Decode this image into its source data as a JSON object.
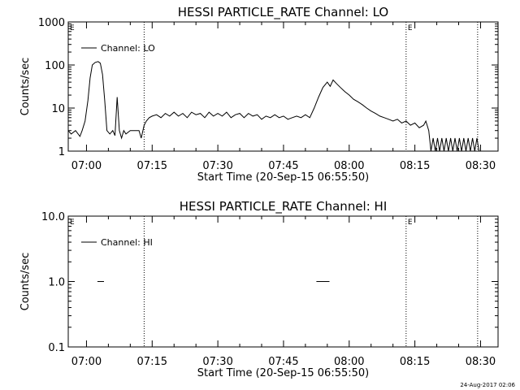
{
  "footer": {
    "timestamp": "24-Aug-2017 02:06"
  },
  "chart_data": [
    {
      "type": "line",
      "title": "HESSI PARTICLE_RATE Channel: LO",
      "xlabel": "Start Time (20-Sep-15 06:55:50)",
      "ylabel": "Counts/sec",
      "yscale": "log",
      "xlim": [
        "06:55:50",
        "08:34:00"
      ],
      "ylim": [
        1,
        1000
      ],
      "x_ticks": [
        "07:00",
        "07:15",
        "07:30",
        "07:45",
        "08:00",
        "08:15",
        "08:30"
      ],
      "y_ticks": [
        "1",
        "10",
        "100",
        "1000"
      ],
      "legend": {
        "position": "top-left",
        "entries": [
          "Channel: LO"
        ]
      },
      "vertical_markers": [
        "07:13:10",
        "08:13:00",
        "08:29:20"
      ],
      "marker_labels": [
        {
          "at": "08:13:00",
          "text": "E"
        },
        {
          "at": "06:55:50",
          "text": "E"
        }
      ],
      "series": [
        {
          "name": "Channel: LO",
          "points": [
            [
              "06:55:50",
              3
            ],
            [
              "06:56:30",
              2.5
            ],
            [
              "06:57:30",
              3
            ],
            [
              "06:58:30",
              2.2
            ],
            [
              "06:59:00",
              3
            ],
            [
              "06:59:40",
              5
            ],
            [
              "07:00:20",
              15
            ],
            [
              "07:00:50",
              50
            ],
            [
              "07:01:20",
              100
            ],
            [
              "07:02:00",
              115
            ],
            [
              "07:02:40",
              120
            ],
            [
              "07:03:10",
              110
            ],
            [
              "07:03:40",
              60
            ],
            [
              "07:04:10",
              15
            ],
            [
              "07:04:40",
              3
            ],
            [
              "07:05:20",
              2.5
            ],
            [
              "07:06:00",
              3
            ],
            [
              "07:06:30",
              2.3
            ],
            [
              "07:07:00",
              18
            ],
            [
              "07:07:30",
              3
            ],
            [
              "07:08:00",
              2
            ],
            [
              "07:08:30",
              3
            ],
            [
              "07:09:00",
              2.5
            ],
            [
              "07:10:00",
              3
            ],
            [
              "07:11:00",
              3
            ],
            [
              "07:12:00",
              3
            ],
            [
              "07:12:30",
              2
            ],
            [
              "07:13:10",
              4
            ],
            [
              "07:13:40",
              5
            ],
            [
              "07:14:20",
              6
            ],
            [
              "07:15:00",
              6.5
            ],
            [
              "07:16:00",
              7
            ],
            [
              "07:17:00",
              6
            ],
            [
              "07:18:00",
              7.5
            ],
            [
              "07:19:00",
              6.5
            ],
            [
              "07:20:00",
              8
            ],
            [
              "07:21:00",
              6.5
            ],
            [
              "07:22:00",
              7.5
            ],
            [
              "07:23:00",
              6
            ],
            [
              "07:24:00",
              8
            ],
            [
              "07:25:00",
              7
            ],
            [
              "07:26:00",
              7.5
            ],
            [
              "07:27:00",
              6
            ],
            [
              "07:28:00",
              8
            ],
            [
              "07:29:00",
              6.5
            ],
            [
              "07:30:00",
              7.5
            ],
            [
              "07:31:00",
              6.5
            ],
            [
              "07:32:00",
              8
            ],
            [
              "07:33:00",
              6
            ],
            [
              "07:34:00",
              7
            ],
            [
              "07:35:00",
              7.5
            ],
            [
              "07:36:00",
              6
            ],
            [
              "07:37:00",
              7.5
            ],
            [
              "07:38:00",
              6.5
            ],
            [
              "07:39:00",
              7
            ],
            [
              "07:40:00",
              5.5
            ],
            [
              "07:41:00",
              6.5
            ],
            [
              "07:42:00",
              6
            ],
            [
              "07:43:00",
              7
            ],
            [
              "07:44:00",
              6
            ],
            [
              "07:45:00",
              6.5
            ],
            [
              "07:46:00",
              5.5
            ],
            [
              "07:47:00",
              6
            ],
            [
              "07:48:00",
              6.5
            ],
            [
              "07:49:00",
              6
            ],
            [
              "07:50:00",
              7
            ],
            [
              "07:51:00",
              6
            ],
            [
              "07:52:00",
              10
            ],
            [
              "07:53:00",
              18
            ],
            [
              "07:54:00",
              30
            ],
            [
              "07:55:00",
              40
            ],
            [
              "07:55:40",
              32
            ],
            [
              "07:56:20",
              45
            ],
            [
              "07:57:00",
              38
            ],
            [
              "07:58:00",
              30
            ],
            [
              "07:59:00",
              24
            ],
            [
              "08:00:00",
              20
            ],
            [
              "08:01:00",
              16
            ],
            [
              "08:02:00",
              14
            ],
            [
              "08:03:00",
              12
            ],
            [
              "08:04:00",
              10
            ],
            [
              "08:05:00",
              8.5
            ],
            [
              "08:06:00",
              7.5
            ],
            [
              "08:07:00",
              6.5
            ],
            [
              "08:08:00",
              6
            ],
            [
              "08:09:00",
              5.5
            ],
            [
              "08:10:00",
              5
            ],
            [
              "08:11:00",
              5.5
            ],
            [
              "08:12:00",
              4.5
            ],
            [
              "08:13:00",
              5
            ],
            [
              "08:14:00",
              4
            ],
            [
              "08:15:00",
              4.5
            ],
            [
              "08:16:00",
              3.5
            ],
            [
              "08:17:00",
              4
            ],
            [
              "08:17:30",
              5
            ],
            [
              "08:18:10",
              3
            ],
            [
              "08:18:40",
              1
            ],
            [
              "08:19:10",
              2
            ],
            [
              "08:19:40",
              1
            ],
            [
              "08:20:10",
              2
            ],
            [
              "08:20:40",
              1
            ],
            [
              "08:21:10",
              2
            ],
            [
              "08:21:40",
              1
            ],
            [
              "08:22:10",
              2
            ],
            [
              "08:22:40",
              1
            ],
            [
              "08:23:10",
              2
            ],
            [
              "08:23:40",
              1
            ],
            [
              "08:24:10",
              2
            ],
            [
              "08:24:40",
              1
            ],
            [
              "08:25:10",
              2
            ],
            [
              "08:25:40",
              1
            ],
            [
              "08:26:10",
              2
            ],
            [
              "08:26:40",
              1
            ],
            [
              "08:27:10",
              2
            ],
            [
              "08:27:40",
              1
            ],
            [
              "08:28:10",
              2
            ],
            [
              "08:28:40",
              1
            ],
            [
              "08:29:10",
              2
            ],
            [
              "08:29:40",
              1
            ]
          ]
        }
      ]
    },
    {
      "type": "line",
      "title": "HESSI PARTICLE_RATE Channel: HI",
      "xlabel": "Start Time (20-Sep-15 06:55:50)",
      "ylabel": "Counts/sec",
      "yscale": "log",
      "xlim": [
        "06:55:50",
        "08:34:00"
      ],
      "ylim": [
        0.1,
        10
      ],
      "x_ticks": [
        "07:00",
        "07:15",
        "07:30",
        "07:45",
        "08:00",
        "08:15",
        "08:30"
      ],
      "y_ticks": [
        "0.1",
        "1.0",
        "10.0"
      ],
      "legend": {
        "position": "top-left",
        "entries": [
          "Channel: HI"
        ]
      },
      "vertical_markers": [
        "07:13:10",
        "08:13:00",
        "08:29:20"
      ],
      "marker_labels": [
        {
          "at": "08:13:00",
          "text": "E"
        },
        {
          "at": "06:55:50",
          "text": "E"
        }
      ],
      "series": [
        {
          "name": "Channel: HI",
          "segments": [
            [
              [
                "07:02:30",
                1
              ],
              [
                "07:04:00",
                1
              ]
            ],
            [
              [
                "07:52:30",
                1
              ],
              [
                "07:55:30",
                1
              ]
            ]
          ]
        }
      ]
    }
  ]
}
